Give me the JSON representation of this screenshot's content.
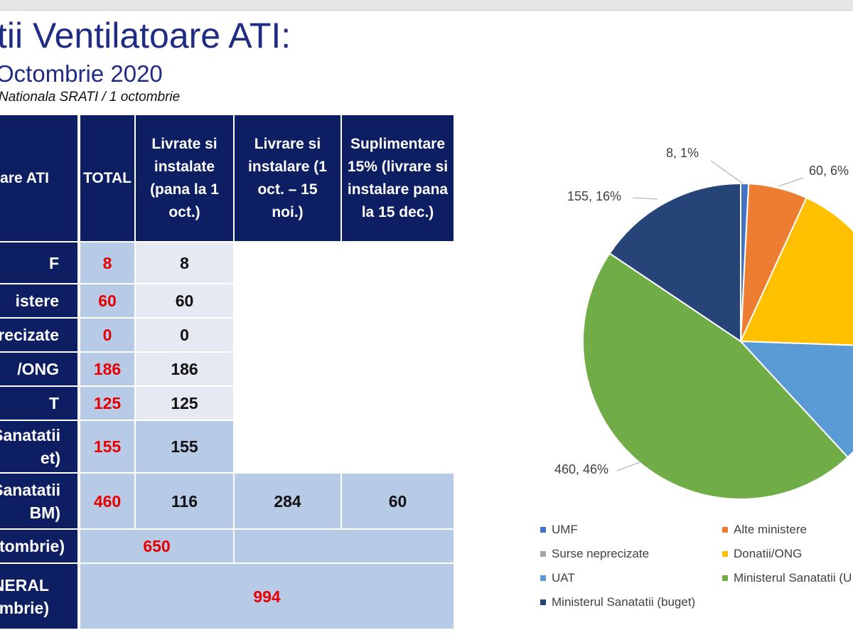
{
  "header": {
    "title": "tii Ventilatoare ATI:",
    "subtitle": "Octombrie 2020",
    "source": "Nationala SRATI / 1 octombrie"
  },
  "table": {
    "headers": [
      "are ATI",
      "TOTAL",
      "Livrate si instalate (pana la 1 oct.)",
      "Livrare si instalare (1 oct. – 15 noi.)",
      "Suplimentare 15% (livrare si instalare pana la 15 dec.)"
    ],
    "rows": [
      {
        "label": "F",
        "total": "8",
        "livrate": "8"
      },
      {
        "label": "istere",
        "total": "60",
        "livrate": "60"
      },
      {
        "label": "recizate",
        "total": "0",
        "livrate": "0"
      },
      {
        "label": "/ONG",
        "total": "186",
        "livrate": "186"
      },
      {
        "label": "T",
        "total": "125",
        "livrate": "125"
      },
      {
        "label": "Sanatatii\net)",
        "total": "155",
        "livrate": "155"
      },
      {
        "label": "Sanatatii\nBM)",
        "total": "460",
        "livrate": "116",
        "oct_noi": "284",
        "supl": "60"
      }
    ],
    "subtotal": {
      "label": "tombrie)",
      "value": "650"
    },
    "grand": {
      "label": "NERAL\nmbrie)",
      "value": "994"
    }
  },
  "chart_data": {
    "type": "pie",
    "slices": [
      {
        "name": "UMF",
        "value": 8,
        "percent": 1,
        "label": "8, 1%",
        "color": "#4472c4"
      },
      {
        "name": "Alte ministere",
        "value": 60,
        "percent": 6,
        "label": "60, 6%",
        "color": "#ed7d31"
      },
      {
        "name": "Surse neprecizate",
        "value": 0,
        "percent": 0,
        "label": "",
        "color": "#a5a5a5"
      },
      {
        "name": "Donatii/ONG",
        "value": 186,
        "percent": 19,
        "label": "",
        "color": "#ffc000"
      },
      {
        "name": "UAT",
        "value": 125,
        "percent": 13,
        "label": "",
        "color": "#5b9bd5"
      },
      {
        "name": "Ministerul Sanatatii (U",
        "value": 460,
        "percent": 46,
        "label": "460, 46%",
        "color": "#70ad47"
      },
      {
        "name": "Ministerul Sanatatii (buget)",
        "value": 155,
        "percent": 16,
        "label": "155, 16%",
        "color": "#264478"
      }
    ],
    "legend": [
      "UMF",
      "Alte ministere",
      "Surse neprecizate",
      "Donatii/ONG",
      "UAT",
      "Ministerul Sanatatii (U",
      "Ministerul Sanatatii (buget)"
    ],
    "legend_placement": "bottom"
  }
}
